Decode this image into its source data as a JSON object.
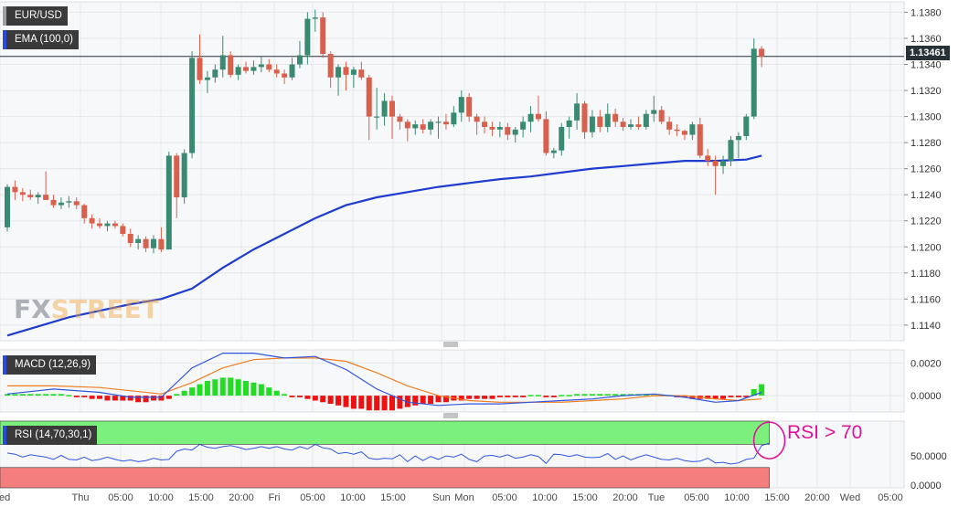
{
  "symbol": "EUR/USD",
  "indicators": {
    "ema_label": "EMA (100,0)",
    "macd_label": "MACD (12,26,9)",
    "rsi_label": "RSI (14,70,30,1)"
  },
  "current_price": "1.13461",
  "annotation": "RSI > 70",
  "watermark": {
    "part1": "FX",
    "part2": "STREET"
  },
  "colors": {
    "up": "#3a8a72",
    "down": "#d9604c",
    "ema": "#1e3ccf",
    "macd_line": "#2f55e0",
    "signal_line": "#ef7d20",
    "hist_pos": "#22dd22",
    "hist_neg": "#ee1111",
    "rsi_line": "#2f55e0",
    "overbought": "#7cf07c",
    "oversold": "#f47e7e",
    "annotation": "#e0129b"
  },
  "chart_data": [
    {
      "type": "candlestick",
      "title": "EUR/USD",
      "ylim": [
        1.1128,
        1.1388
      ],
      "y_ticks": [
        "1.1380",
        "1.1360",
        "1.1340",
        "1.1320",
        "1.1300",
        "1.1280",
        "1.1260",
        "1.1240",
        "1.1220",
        "1.1200",
        "1.1180",
        "1.1160",
        "1.1140"
      ],
      "x_ticks": [
        "Wed",
        "Thu",
        "05:00",
        "10:00",
        "15:00",
        "20:00",
        "Fri",
        "05:00",
        "10:00",
        "15:00",
        "Sun",
        "Mon",
        "05:00",
        "10:00",
        "15:00",
        "20:00",
        "Tue",
        "05:00",
        "10:00",
        "15:00",
        "20:00",
        "Wed",
        "05:00"
      ],
      "candles": [
        [
          1.1215,
          1.1248,
          1.1212,
          1.1246
        ],
        [
          1.1246,
          1.1251,
          1.1236,
          1.1242
        ],
        [
          1.1242,
          1.1245,
          1.1235,
          1.124
        ],
        [
          1.124,
          1.1244,
          1.1236,
          1.1238
        ],
        [
          1.1238,
          1.1242,
          1.1233,
          1.124
        ],
        [
          1.124,
          1.1258,
          1.1236,
          1.1236
        ],
        [
          1.1236,
          1.124,
          1.123,
          1.1232
        ],
        [
          1.1232,
          1.1238,
          1.1229,
          1.1234
        ],
        [
          1.1234,
          1.1239,
          1.123,
          1.1235
        ],
        [
          1.1235,
          1.1238,
          1.1229,
          1.1232
        ],
        [
          1.1232,
          1.1233,
          1.1218,
          1.1222
        ],
        [
          1.1222,
          1.1225,
          1.1214,
          1.1218
        ],
        [
          1.1218,
          1.1222,
          1.1214,
          1.1216
        ],
        [
          1.1216,
          1.122,
          1.1212,
          1.1218
        ],
        [
          1.1218,
          1.122,
          1.1214,
          1.1216
        ],
        [
          1.1216,
          1.1218,
          1.1208,
          1.121
        ],
        [
          1.121,
          1.1214,
          1.12,
          1.1203
        ],
        [
          1.1203,
          1.1209,
          1.1198,
          1.1206
        ],
        [
          1.1206,
          1.1208,
          1.1196,
          1.1199
        ],
        [
          1.1199,
          1.1209,
          1.1195,
          1.1206
        ],
        [
          1.1206,
          1.1215,
          1.1196,
          1.1198
        ],
        [
          1.1198,
          1.1273,
          1.1198,
          1.127
        ],
        [
          1.127,
          1.1272,
          1.1222,
          1.1238
        ],
        [
          1.1238,
          1.1275,
          1.1233,
          1.1272
        ],
        [
          1.1272,
          1.135,
          1.1268,
          1.1345
        ],
        [
          1.1345,
          1.1363,
          1.1325,
          1.1328
        ],
        [
          1.1328,
          1.1335,
          1.1318,
          1.133
        ],
        [
          1.133,
          1.134,
          1.1326,
          1.1336
        ],
        [
          1.1336,
          1.1362,
          1.133,
          1.1347
        ],
        [
          1.1347,
          1.135,
          1.133,
          1.1332
        ],
        [
          1.1332,
          1.134,
          1.1328,
          1.1338
        ],
        [
          1.1338,
          1.1342,
          1.1333,
          1.1335
        ],
        [
          1.1335,
          1.1343,
          1.1332,
          1.1338
        ],
        [
          1.1338,
          1.1346,
          1.1334,
          1.134
        ],
        [
          1.134,
          1.1344,
          1.1334,
          1.1336
        ],
        [
          1.1336,
          1.134,
          1.133,
          1.1333
        ],
        [
          1.1333,
          1.1336,
          1.1325,
          1.133
        ],
        [
          1.133,
          1.1345,
          1.1328,
          1.134
        ],
        [
          1.134,
          1.1358,
          1.1337,
          1.1347
        ],
        [
          1.1347,
          1.138,
          1.134,
          1.1375
        ],
        [
          1.1375,
          1.1382,
          1.1365,
          1.1376
        ],
        [
          1.1376,
          1.138,
          1.1345,
          1.1348
        ],
        [
          1.1348,
          1.135,
          1.1322,
          1.133
        ],
        [
          1.133,
          1.134,
          1.1316,
          1.1338
        ],
        [
          1.1338,
          1.1342,
          1.132,
          1.1332
        ],
        [
          1.1332,
          1.1338,
          1.1322,
          1.1336
        ],
        [
          1.1336,
          1.1342,
          1.1328,
          1.133
        ],
        [
          1.133,
          1.1332,
          1.1282,
          1.13
        ],
        [
          1.13,
          1.1322,
          1.129,
          1.13
        ],
        [
          1.13,
          1.1318,
          1.1293,
          1.1312
        ],
        [
          1.1312,
          1.1316,
          1.1283,
          1.13
        ],
        [
          1.13,
          1.1302,
          1.129,
          1.1296
        ],
        [
          1.1296,
          1.1298,
          1.1281,
          1.1291
        ],
        [
          1.1291,
          1.1297,
          1.1286,
          1.1294
        ],
        [
          1.1294,
          1.1298,
          1.1287,
          1.129
        ],
        [
          1.129,
          1.1298,
          1.1286,
          1.1296
        ],
        [
          1.1296,
          1.13,
          1.1283,
          1.1296
        ],
        [
          1.1296,
          1.1302,
          1.129,
          1.1294
        ],
        [
          1.1294,
          1.1308,
          1.1292,
          1.1303
        ],
        [
          1.1303,
          1.132,
          1.1296,
          1.1315
        ],
        [
          1.1315,
          1.1318,
          1.1296,
          1.13
        ],
        [
          1.13,
          1.1302,
          1.1286,
          1.1296
        ],
        [
          1.1296,
          1.13,
          1.1287,
          1.1292
        ],
        [
          1.1292,
          1.1296,
          1.1285,
          1.129
        ],
        [
          1.129,
          1.1296,
          1.1284,
          1.1292
        ],
        [
          1.1292,
          1.1295,
          1.1282,
          1.1286
        ],
        [
          1.1286,
          1.1292,
          1.128,
          1.129
        ],
        [
          1.129,
          1.13,
          1.1284,
          1.1296
        ],
        [
          1.1296,
          1.1308,
          1.1288,
          1.1302
        ],
        [
          1.1302,
          1.1316,
          1.1296,
          1.1298
        ],
        [
          1.1298,
          1.1304,
          1.127,
          1.1272
        ],
        [
          1.1272,
          1.1276,
          1.1268,
          1.1274
        ],
        [
          1.1274,
          1.1295,
          1.127,
          1.1292
        ],
        [
          1.1292,
          1.13,
          1.1283,
          1.1297
        ],
        [
          1.1297,
          1.1318,
          1.129,
          1.131
        ],
        [
          1.131,
          1.1312,
          1.1283,
          1.1288
        ],
        [
          1.1288,
          1.1305,
          1.1284,
          1.13
        ],
        [
          1.13,
          1.1305,
          1.1288,
          1.1292
        ],
        [
          1.1292,
          1.131,
          1.1288,
          1.1302
        ],
        [
          1.1302,
          1.1306,
          1.1292,
          1.1296
        ],
        [
          1.1296,
          1.1299,
          1.1289,
          1.1292
        ],
        [
          1.1292,
          1.1298,
          1.129,
          1.1294
        ],
        [
          1.1294,
          1.13,
          1.129,
          1.1292
        ],
        [
          1.1292,
          1.1305,
          1.129,
          1.1302
        ],
        [
          1.1302,
          1.1316,
          1.1296,
          1.1305
        ],
        [
          1.1305,
          1.1308,
          1.1294,
          1.1296
        ],
        [
          1.1296,
          1.13,
          1.1286,
          1.129
        ],
        [
          1.129,
          1.1294,
          1.1285,
          1.1289
        ],
        [
          1.1289,
          1.129,
          1.1282,
          1.1286
        ],
        [
          1.1286,
          1.1296,
          1.1282,
          1.1294
        ],
        [
          1.1294,
          1.1299,
          1.1268,
          1.127
        ],
        [
          1.127,
          1.1275,
          1.1262,
          1.1266
        ],
        [
          1.1266,
          1.127,
          1.124,
          1.1262
        ],
        [
          1.1262,
          1.127,
          1.1256,
          1.1266
        ],
        [
          1.1266,
          1.1285,
          1.1262,
          1.1282
        ],
        [
          1.1282,
          1.1288,
          1.1268,
          1.1285
        ],
        [
          1.1285,
          1.1302,
          1.1282,
          1.13
        ],
        [
          1.13,
          1.136,
          1.1298,
          1.1352
        ],
        [
          1.1352,
          1.1354,
          1.1338,
          1.1346
        ]
      ],
      "ema": {
        "x_index": [
          0,
          8,
          16,
          20,
          24,
          28,
          32,
          36,
          40,
          44,
          48,
          52,
          56,
          60,
          64,
          68,
          72,
          76,
          80,
          84,
          88,
          92,
          96,
          98
        ],
        "values": [
          1.1132,
          1.1146,
          1.1156,
          1.116,
          1.1168,
          1.1184,
          1.1198,
          1.121,
          1.1222,
          1.1232,
          1.1238,
          1.1242,
          1.1246,
          1.1249,
          1.1252,
          1.1254,
          1.1257,
          1.126,
          1.1262,
          1.1264,
          1.1266,
          1.1266,
          1.1267,
          1.127
        ]
      }
    },
    {
      "type": "line",
      "title": "MACD (12,26,9)",
      "ylim": [
        -0.001,
        0.0028
      ],
      "y_ticks": [
        "0.0020",
        "0.0000"
      ],
      "macd": {
        "x_index": [
          0,
          6,
          12,
          16,
          20,
          24,
          28,
          32,
          36,
          40,
          44,
          48,
          52,
          56,
          60,
          64,
          68,
          72,
          76,
          80,
          84,
          88,
          92,
          95,
          98
        ],
        "values": [
          0.0001,
          0.0004,
          0.0002,
          -0.0001,
          -0.0001,
          0.0017,
          0.0026,
          0.0026,
          0.0023,
          0.0024,
          0.0016,
          0.0004,
          -0.0004,
          -0.0006,
          -0.0005,
          -0.0005,
          -0.0004,
          -0.0003,
          -0.0002,
          0.0,
          0.0001,
          -0.0001,
          -0.0004,
          -0.0003,
          0.0002
        ]
      },
      "signal": {
        "x_index": [
          0,
          6,
          12,
          16,
          20,
          24,
          28,
          32,
          36,
          40,
          44,
          48,
          52,
          56,
          60,
          64,
          68,
          72,
          76,
          80,
          84,
          88,
          92,
          95,
          98
        ],
        "values": [
          0.0006,
          0.0006,
          0.0005,
          0.0003,
          0.0001,
          0.0008,
          0.0017,
          0.0022,
          0.0023,
          0.0023,
          0.0021,
          0.0014,
          0.0006,
          0.0,
          -0.0003,
          -0.0004,
          -0.0004,
          -0.0004,
          -0.0003,
          -0.0002,
          0.0,
          0.0,
          -0.0002,
          -0.0003,
          -0.0002
        ]
      },
      "histogram": {
        "x_index_start": 0,
        "values": [
          0.0001,
          0.0001,
          0.0001,
          0.0001,
          0.0001,
          0.0001,
          0.0001,
          0.0001,
          0.0,
          -0.0001,
          -0.0001,
          -0.0002,
          -0.0002,
          -0.0003,
          -0.0003,
          -0.0003,
          -0.0003,
          -0.0004,
          -0.0004,
          -0.0003,
          -0.0003,
          -0.0002,
          0.0001,
          0.0003,
          0.0005,
          0.0007,
          0.0009,
          0.001,
          0.0011,
          0.0011,
          0.001,
          0.0009,
          0.0008,
          0.0007,
          0.0005,
          0.0003,
          0.0001,
          -0.0001,
          -0.0001,
          -0.0002,
          -0.0003,
          -0.0004,
          -0.0005,
          -0.0006,
          -0.0007,
          -0.0008,
          -0.0008,
          -0.0009,
          -0.0009,
          -0.0009,
          -0.0009,
          -0.0008,
          -0.0007,
          -0.0006,
          -0.0005,
          -0.0005,
          -0.0004,
          -0.0004,
          -0.0003,
          -0.0003,
          -0.0002,
          -0.0002,
          -0.0002,
          -0.0002,
          -0.0001,
          -0.0001,
          -0.0001,
          -0.0001,
          0.0,
          0.0,
          -0.0001,
          -0.0001,
          0.0,
          0.0,
          0.0001,
          0.0001,
          0.0001,
          0.0001,
          0.0001,
          0.0001,
          0.0001,
          0.0001,
          0.0001,
          0.0001,
          0.0,
          0.0,
          0.0,
          -0.0001,
          -0.0001,
          -0.0002,
          -0.0002,
          -0.0002,
          -0.0002,
          -0.0002,
          -0.0001,
          -0.0001,
          -0.0001,
          0.0004,
          0.0007
        ]
      }
    },
    {
      "type": "line",
      "title": "RSI (14,70,30,1)",
      "ylim": [
        -5,
        110
      ],
      "y_ticks": [
        "50.0000",
        "0.0000"
      ],
      "overbought": 70,
      "oversold": 30,
      "values": [
        55,
        53,
        48,
        52,
        50,
        48,
        44,
        51,
        44,
        43,
        48,
        42,
        44,
        48,
        44,
        41,
        43,
        40,
        42,
        46,
        43,
        44,
        58,
        62,
        60,
        70,
        65,
        63,
        66,
        68,
        65,
        61,
        63,
        66,
        63,
        66,
        62,
        60,
        66,
        62,
        70,
        64,
        62,
        54,
        56,
        53,
        57,
        46,
        44,
        46,
        45,
        52,
        40,
        50,
        42,
        49,
        44,
        50,
        48,
        53,
        44,
        40,
        50,
        51,
        48,
        52,
        46,
        48,
        52,
        49,
        37,
        53,
        52,
        49,
        52,
        48,
        47,
        48,
        54,
        44,
        50,
        43,
        48,
        52,
        48,
        44,
        43,
        46,
        42,
        40,
        41,
        46,
        38,
        39,
        36,
        38,
        44,
        46,
        68,
        72
      ]
    }
  ]
}
